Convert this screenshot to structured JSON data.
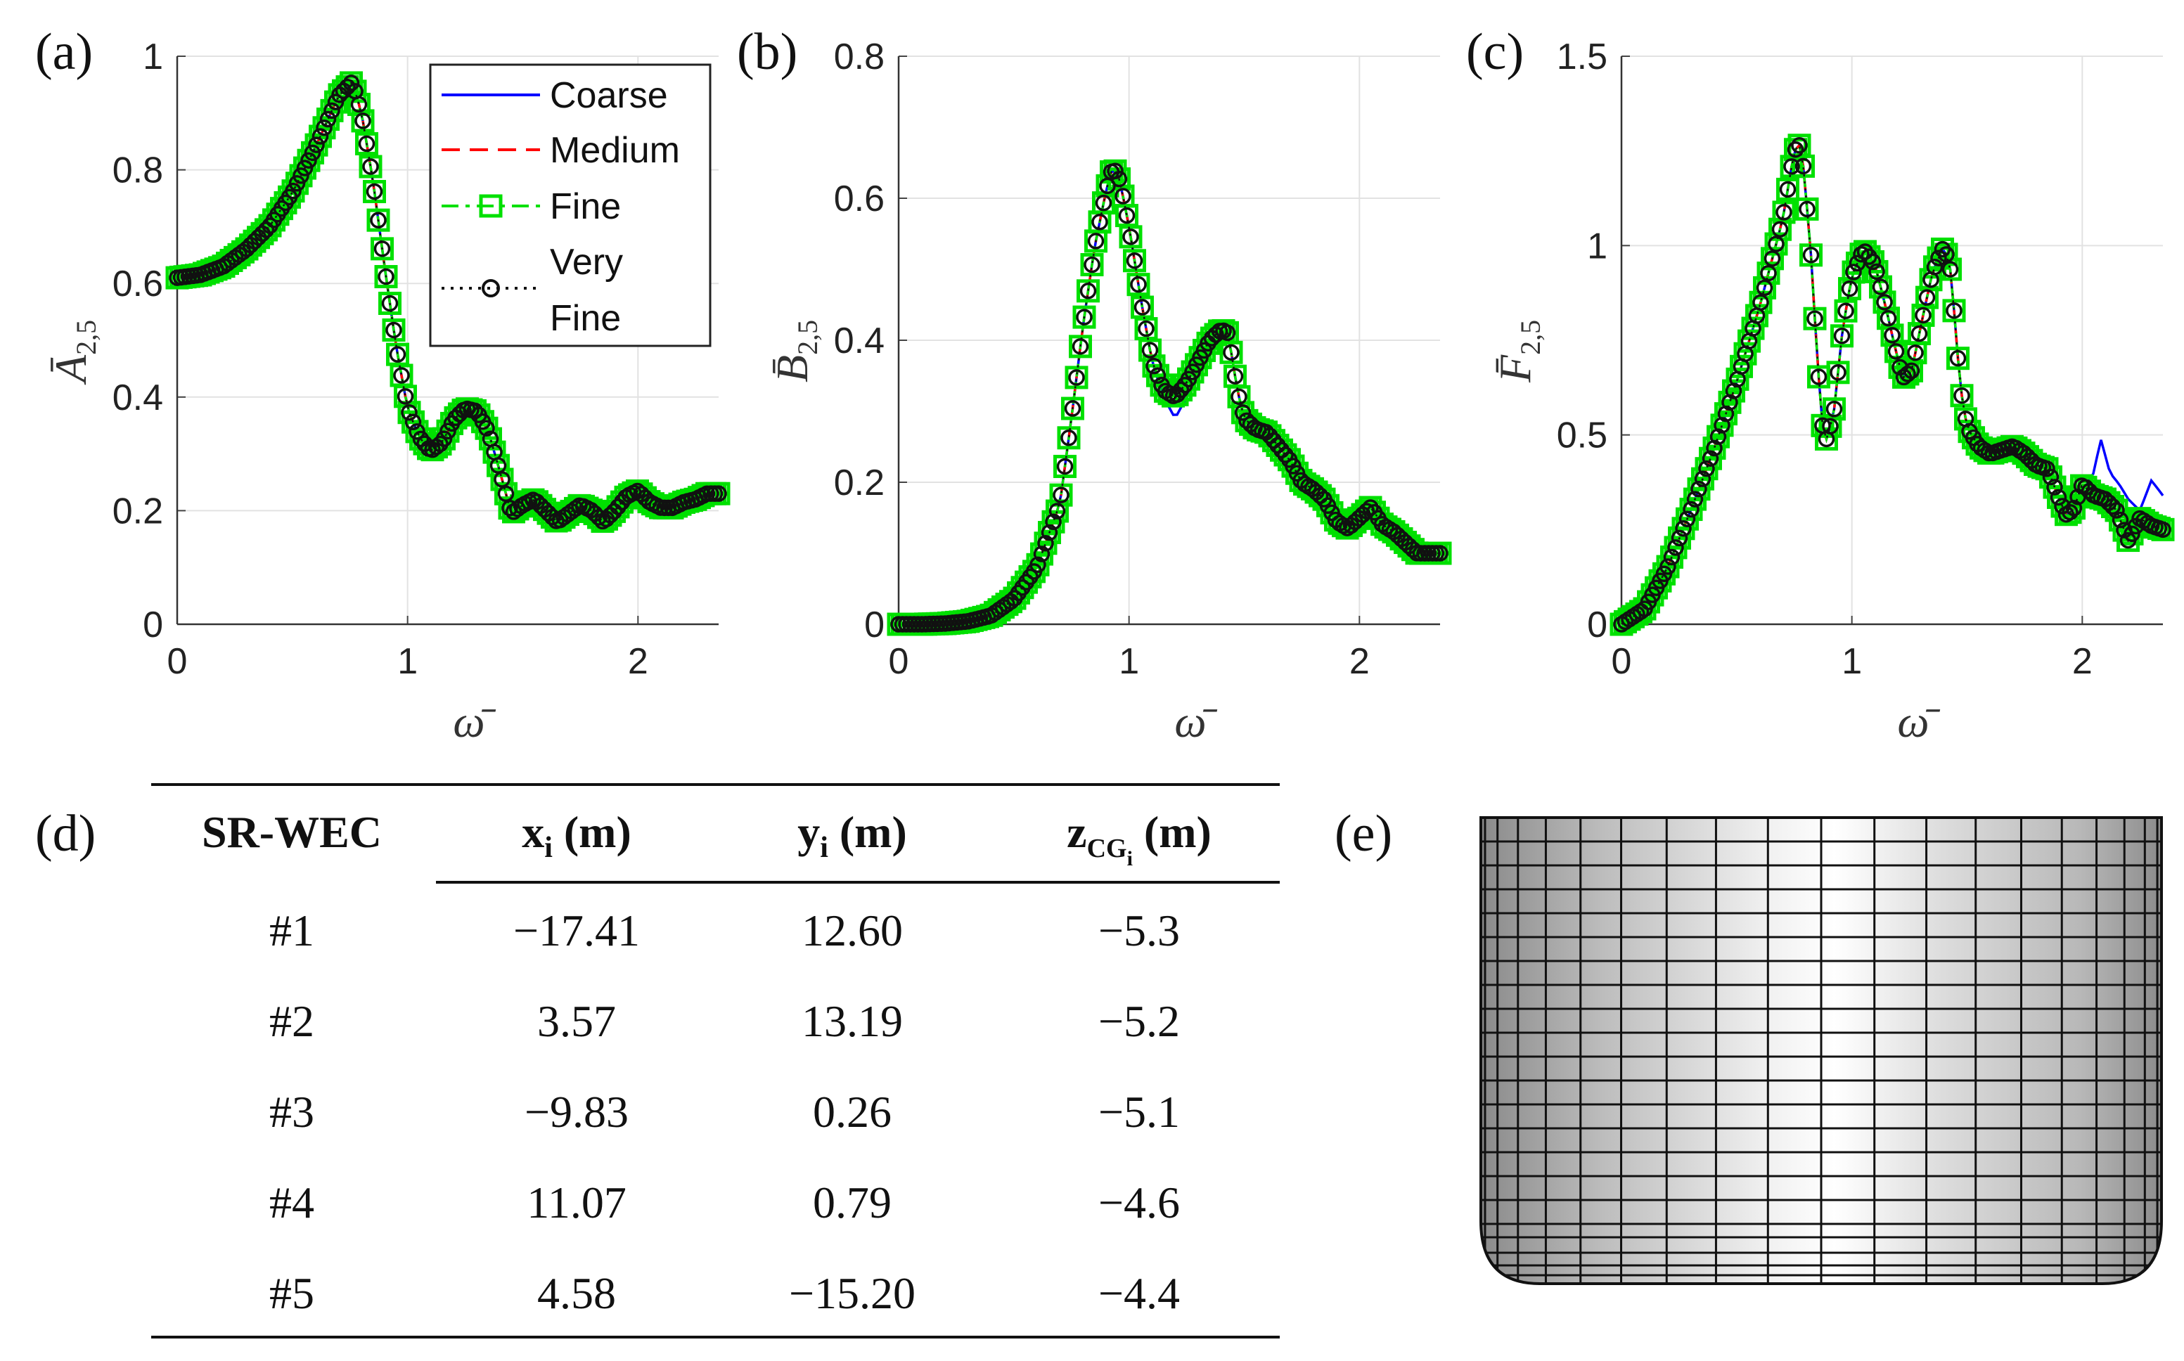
{
  "panels": {
    "a": "(a)",
    "b": "(b)",
    "c": "(c)",
    "d": "(d)",
    "e": "(e)"
  },
  "legend": {
    "entries": [
      {
        "name": "Coarse",
        "color": "#0000ff",
        "style": "solid"
      },
      {
        "name": "Medium",
        "color": "#ff0000",
        "style": "dashed"
      },
      {
        "name": "Fine",
        "color": "#00e000",
        "style": "dashdot-square"
      },
      {
        "name": "Very\nFine",
        "line1": "Very",
        "line2": "Fine",
        "color": "#111111",
        "style": "dotted-circle"
      }
    ]
  },
  "chart_data": [
    {
      "type": "line",
      "id": "a",
      "ylabel": "Ā",
      "ylabel_sub": "2,5",
      "xlabel": "ω̄",
      "xlim": [
        0,
        2.35
      ],
      "ylim": [
        0,
        1
      ],
      "xticks": [
        "0",
        "1",
        "2"
      ],
      "yticks": [
        "0",
        "0.2",
        "0.4",
        "0.6",
        "0.8",
        "1"
      ],
      "ytick_values": [
        0,
        0.2,
        0.4,
        0.6,
        0.8,
        1
      ],
      "grid": true,
      "legend_position": "top-right",
      "curve": [
        [
          0,
          0.61
        ],
        [
          0.1,
          0.615
        ],
        [
          0.2,
          0.63
        ],
        [
          0.3,
          0.66
        ],
        [
          0.4,
          0.7
        ],
        [
          0.5,
          0.76
        ],
        [
          0.6,
          0.84
        ],
        [
          0.7,
          0.93
        ],
        [
          0.76,
          0.955
        ],
        [
          0.8,
          0.9
        ],
        [
          0.85,
          0.78
        ],
        [
          0.9,
          0.63
        ],
        [
          0.95,
          0.49
        ],
        [
          1.0,
          0.38
        ],
        [
          1.05,
          0.33
        ],
        [
          1.1,
          0.305
        ],
        [
          1.15,
          0.32
        ],
        [
          1.2,
          0.36
        ],
        [
          1.25,
          0.38
        ],
        [
          1.3,
          0.375
        ],
        [
          1.35,
          0.34
        ],
        [
          1.4,
          0.27
        ],
        [
          1.45,
          0.195
        ],
        [
          1.5,
          0.21
        ],
        [
          1.55,
          0.22
        ],
        [
          1.6,
          0.2
        ],
        [
          1.65,
          0.18
        ],
        [
          1.7,
          0.195
        ],
        [
          1.75,
          0.21
        ],
        [
          1.8,
          0.2
        ],
        [
          1.85,
          0.18
        ],
        [
          1.9,
          0.2
        ],
        [
          1.95,
          0.225
        ],
        [
          2.0,
          0.235
        ],
        [
          2.05,
          0.215
        ],
        [
          2.1,
          0.205
        ],
        [
          2.15,
          0.205
        ],
        [
          2.2,
          0.215
        ],
        [
          2.25,
          0.22
        ],
        [
          2.3,
          0.23
        ],
        [
          2.35,
          0.23
        ]
      ],
      "coarse_deviation": [],
      "series": [
        {
          "name": "Coarse",
          "values": "curve"
        },
        {
          "name": "Medium",
          "values": "curve"
        },
        {
          "name": "Fine",
          "values": "curve"
        },
        {
          "name": "Very Fine",
          "values": "curve"
        }
      ]
    },
    {
      "type": "line",
      "id": "b",
      "ylabel": "B̄",
      "ylabel_sub": "2,5",
      "xlabel": "ω̄",
      "xlim": [
        0,
        2.35
      ],
      "ylim": [
        0,
        0.8
      ],
      "xticks": [
        "0",
        "1",
        "2"
      ],
      "yticks": [
        "0",
        "0.2",
        "0.4",
        "0.6",
        "0.8"
      ],
      "ytick_values": [
        0,
        0.2,
        0.4,
        0.6,
        0.8
      ],
      "grid": true,
      "curve": [
        [
          0,
          0
        ],
        [
          0.1,
          0
        ],
        [
          0.2,
          0.001
        ],
        [
          0.3,
          0.004
        ],
        [
          0.4,
          0.012
        ],
        [
          0.5,
          0.035
        ],
        [
          0.6,
          0.08
        ],
        [
          0.7,
          0.17
        ],
        [
          0.75,
          0.29
        ],
        [
          0.8,
          0.42
        ],
        [
          0.85,
          0.53
        ],
        [
          0.9,
          0.61
        ],
        [
          0.93,
          0.645
        ],
        [
          0.96,
          0.625
        ],
        [
          1.0,
          0.56
        ],
        [
          1.05,
          0.46
        ],
        [
          1.1,
          0.37
        ],
        [
          1.15,
          0.33
        ],
        [
          1.2,
          0.32
        ],
        [
          1.25,
          0.34
        ],
        [
          1.3,
          0.37
        ],
        [
          1.35,
          0.4
        ],
        [
          1.4,
          0.415
        ],
        [
          1.43,
          0.41
        ],
        [
          1.47,
          0.33
        ],
        [
          1.5,
          0.29
        ],
        [
          1.55,
          0.275
        ],
        [
          1.6,
          0.27
        ],
        [
          1.65,
          0.25
        ],
        [
          1.7,
          0.23
        ],
        [
          1.75,
          0.2
        ],
        [
          1.8,
          0.19
        ],
        [
          1.85,
          0.175
        ],
        [
          1.9,
          0.145
        ],
        [
          1.95,
          0.135
        ],
        [
          2.0,
          0.15
        ],
        [
          2.05,
          0.165
        ],
        [
          2.1,
          0.14
        ],
        [
          2.15,
          0.13
        ],
        [
          2.2,
          0.115
        ],
        [
          2.25,
          0.1
        ],
        [
          2.3,
          0.1
        ],
        [
          2.35,
          0.1
        ]
      ],
      "coarse_deviation": [
        [
          1.15,
          0.32
        ],
        [
          1.2,
          0.29
        ],
        [
          1.25,
          0.32
        ],
        [
          1.3,
          0.36
        ]
      ],
      "series": [
        {
          "name": "Coarse",
          "values": "curve"
        },
        {
          "name": "Medium",
          "values": "curve"
        },
        {
          "name": "Fine",
          "values": "curve"
        },
        {
          "name": "Very Fine",
          "values": "curve"
        }
      ]
    },
    {
      "type": "line",
      "id": "c",
      "ylabel": "F̄",
      "ylabel_sub": "2,5",
      "xlabel": "ω̄",
      "xlim": [
        0,
        2.35
      ],
      "ylim": [
        0,
        1.5
      ],
      "xticks": [
        "0",
        "1",
        "2"
      ],
      "yticks": [
        "0",
        "0.5",
        "1",
        "1.5"
      ],
      "ytick_values": [
        0,
        0.5,
        1,
        1.5
      ],
      "grid": true,
      "curve": [
        [
          0,
          0
        ],
        [
          0.1,
          0.04
        ],
        [
          0.2,
          0.15
        ],
        [
          0.3,
          0.3
        ],
        [
          0.4,
          0.46
        ],
        [
          0.5,
          0.64
        ],
        [
          0.6,
          0.84
        ],
        [
          0.7,
          1.07
        ],
        [
          0.75,
          1.25
        ],
        [
          0.78,
          1.27
        ],
        [
          0.82,
          1.0
        ],
        [
          0.85,
          0.7
        ],
        [
          0.88,
          0.47
        ],
        [
          0.92,
          0.55
        ],
        [
          0.96,
          0.78
        ],
        [
          1.0,
          0.92
        ],
        [
          1.05,
          0.99
        ],
        [
          1.1,
          0.95
        ],
        [
          1.15,
          0.83
        ],
        [
          1.18,
          0.75
        ],
        [
          1.22,
          0.65
        ],
        [
          1.26,
          0.67
        ],
        [
          1.3,
          0.79
        ],
        [
          1.35,
          0.93
        ],
        [
          1.4,
          1.0
        ],
        [
          1.43,
          0.93
        ],
        [
          1.47,
          0.63
        ],
        [
          1.5,
          0.52
        ],
        [
          1.55,
          0.47
        ],
        [
          1.6,
          0.45
        ],
        [
          1.65,
          0.46
        ],
        [
          1.7,
          0.47
        ],
        [
          1.75,
          0.45
        ],
        [
          1.8,
          0.42
        ],
        [
          1.85,
          0.41
        ],
        [
          1.9,
          0.33
        ],
        [
          1.93,
          0.29
        ],
        [
          1.96,
          0.3
        ],
        [
          2.0,
          0.37
        ],
        [
          2.05,
          0.34
        ],
        [
          2.1,
          0.33
        ],
        [
          2.15,
          0.3
        ],
        [
          2.2,
          0.22
        ],
        [
          2.25,
          0.28
        ],
        [
          2.3,
          0.26
        ],
        [
          2.35,
          0.25
        ]
      ],
      "coarse_deviation": [
        [
          2.0,
          0.35
        ],
        [
          2.05,
          0.4
        ],
        [
          2.08,
          0.49
        ],
        [
          2.12,
          0.4
        ],
        [
          2.16,
          0.37
        ],
        [
          2.2,
          0.33
        ],
        [
          2.25,
          0.3
        ],
        [
          2.3,
          0.38
        ],
        [
          2.35,
          0.34
        ]
      ],
      "series": [
        {
          "name": "Coarse",
          "values": "curve"
        },
        {
          "name": "Medium",
          "values": "curve"
        },
        {
          "name": "Fine",
          "values": "curve"
        },
        {
          "name": "Very Fine",
          "values": "curve"
        }
      ]
    }
  ],
  "table": {
    "col_headers": [
      "SR-WEC",
      "x",
      "y",
      "z"
    ],
    "col_subs": [
      "",
      "i",
      "i",
      "CG"
    ],
    "col_subsub": [
      "",
      "",
      "",
      "i"
    ],
    "col_units": [
      "",
      " (m)",
      " (m)",
      " (m)"
    ],
    "rows": [
      [
        "#1",
        "−17.41",
        "12.60",
        "−5.3"
      ],
      [
        "#2",
        "3.57",
        "13.19",
        "−5.2"
      ],
      [
        "#3",
        "−9.83",
        "0.26",
        "−5.1"
      ],
      [
        "#4",
        "11.07",
        "0.79",
        "−4.6"
      ],
      [
        "#5",
        "4.58",
        "−15.20",
        "−4.4"
      ]
    ]
  }
}
